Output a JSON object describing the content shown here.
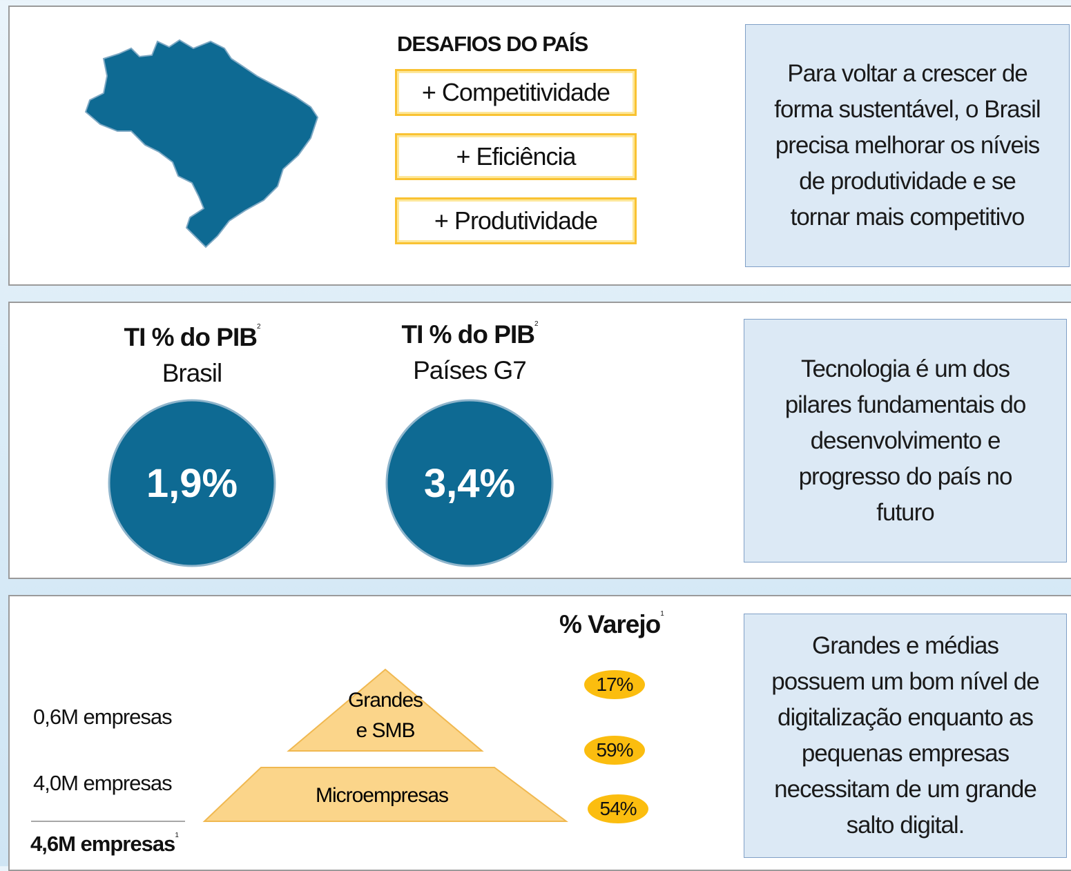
{
  "panel1": {
    "heading": "DESAFIOS DO PAÍS",
    "items": [
      "+ Competitividade",
      "+ Eficiência",
      "+ Produtividade"
    ],
    "note": [
      "Para voltar  a crescer de",
      "forma sustentável,  o Brasil",
      "precisa melhorar os níveis",
      "de produtividade e se",
      "tornar mais competitivo"
    ]
  },
  "panel2": {
    "indicators": [
      {
        "title": "TI % do PIB",
        "footnote": "2",
        "subtitle": "Brasil",
        "value": "1,9%"
      },
      {
        "title": "TI % do PIB",
        "footnote": "2",
        "subtitle": "Países G7",
        "value": "3,4%"
      }
    ],
    "note": [
      "Tecnologia é um dos",
      "pilares fundamentais do",
      "desenvolvimento  e",
      "progresso do país no",
      "futuro"
    ]
  },
  "panel3": {
    "heading": "% Varejo",
    "heading_footnote": "1",
    "percentages": [
      "17%",
      "59%",
      "54%"
    ],
    "pyramid": {
      "top": [
        "Grandes",
        "e SMB"
      ],
      "bottom": "Microempresas"
    },
    "counts": [
      "0,6M empresas",
      "4,0M empresas"
    ],
    "total": "4,6M empresas",
    "total_footnote": "1",
    "note": [
      "Grandes e médias",
      "possuem um bom nível de",
      "digitalização enquanto as",
      "pequenas empresas",
      "necessitam de um grande",
      "salto digital."
    ]
  }
}
